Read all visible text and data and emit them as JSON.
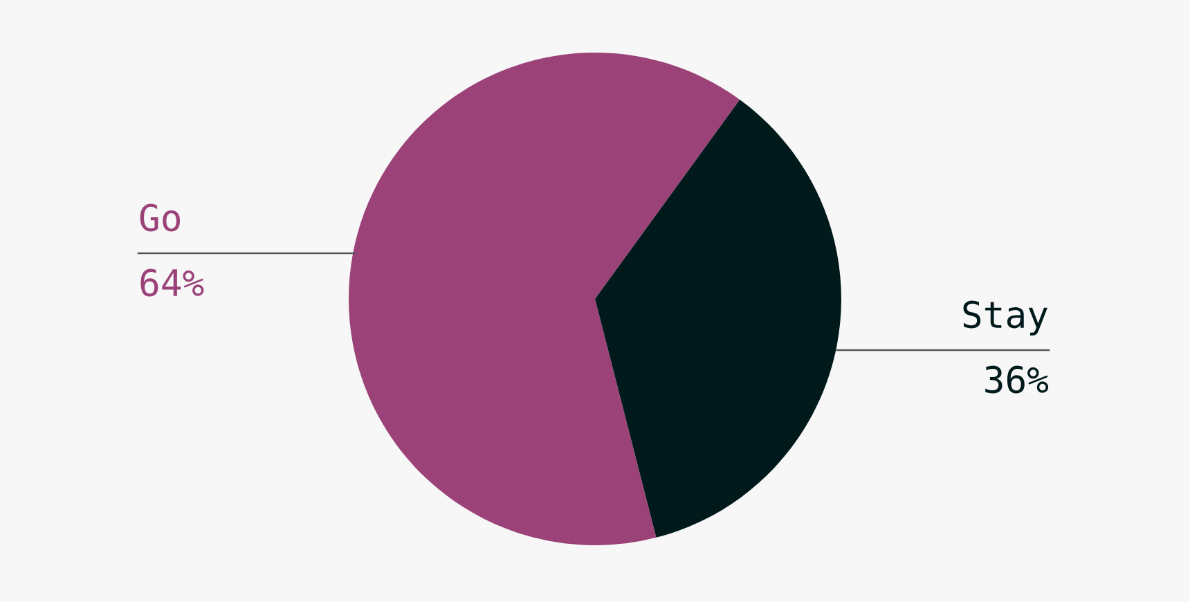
{
  "chart_data": {
    "type": "pie",
    "categories": [
      "Go",
      "Stay"
    ],
    "values": [
      64,
      36
    ],
    "colors": [
      "#9b4379",
      "#001a1c"
    ],
    "value_labels": [
      "64%",
      "36%"
    ]
  }
}
